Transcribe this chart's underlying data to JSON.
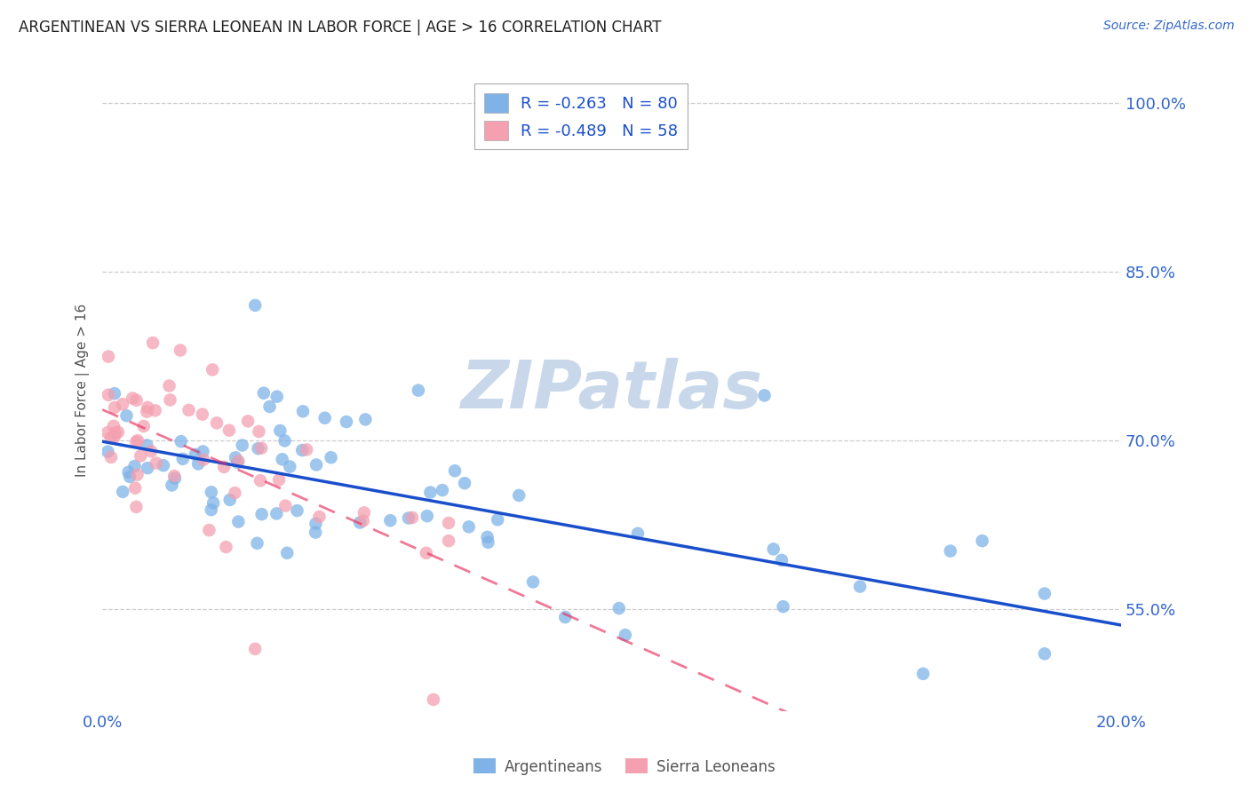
{
  "title": "ARGENTINEAN VS SIERRA LEONEAN IN LABOR FORCE | AGE > 16 CORRELATION CHART",
  "source": "Source: ZipAtlas.com",
  "ylabel": "In Labor Force | Age > 16",
  "xlim": [
    0.0,
    0.2
  ],
  "ylim": [
    0.46,
    1.03
  ],
  "yticks": [
    0.55,
    0.7,
    0.85,
    1.0
  ],
  "ytick_labels": [
    "55.0%",
    "70.0%",
    "85.0%",
    "100.0%"
  ],
  "xticks": [
    0.0,
    0.05,
    0.1,
    0.15,
    0.2
  ],
  "xtick_labels": [
    "0.0%",
    "",
    "",
    "",
    "20.0%"
  ],
  "background_color": "#ffffff",
  "grid_color": "#cccccc",
  "blue_color": "#7fb3e8",
  "pink_color": "#f4a0b0",
  "line_blue": "#1a4fcc",
  "line_pink": "#e83060",
  "title_color": "#222222",
  "axis_color": "#3366cc",
  "watermark_color": "#c8d8ea",
  "R_blue": -0.263,
  "N_blue": 80,
  "R_pink": -0.489,
  "N_pink": 58,
  "legend_blue_color": "#7fb3e8",
  "legend_pink_color": "#f4a0b0"
}
